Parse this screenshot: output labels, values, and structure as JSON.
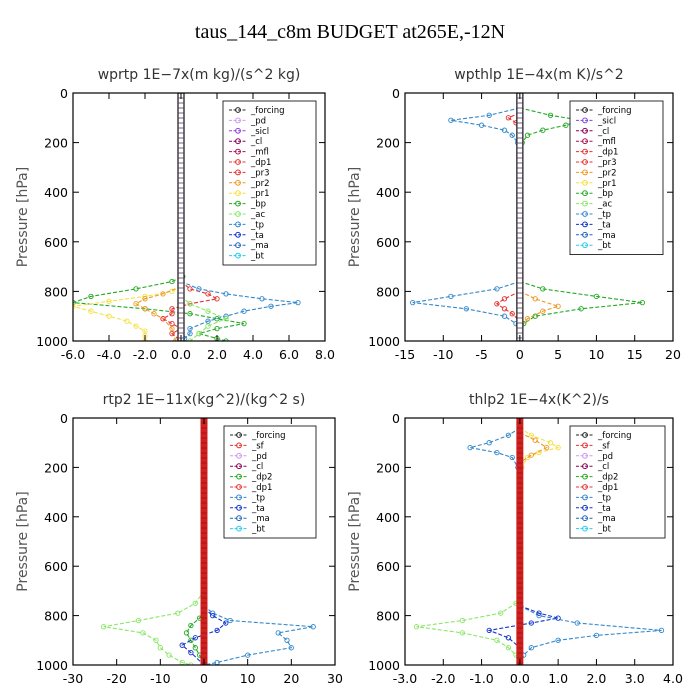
{
  "figure_title": "taus_144_c8m  BUDGET at265E,-12N",
  "colors": {
    "forcing": "#222222",
    "pd": "#cc99ee",
    "sicl": "#8844dd",
    "cl": "#880055",
    "mfl": "#aa1155",
    "dp1": "#e83030",
    "pr3": "#e83030",
    "pr2": "#ee9922",
    "pr1": "#f5e040",
    "bp": "#22aa22",
    "ac": "#88e866",
    "tp": "#3388cc",
    "ta": "#1133cc",
    "ma": "#2266bb",
    "bt": "#22ccee",
    "sf": "#e83030",
    "dp2": "#22aa22",
    "thick_red": "#d02020"
  },
  "chart_data": [
    {
      "type": "line",
      "title": "wprtp   1E−7x(m kg)/(s^2 kg)",
      "ylabel": "Pressure [hPa]",
      "xlim": [
        -6,
        8
      ],
      "ylim": [
        1000,
        0
      ],
      "xticks": [
        -6,
        -4,
        -2,
        0,
        2,
        4,
        6,
        8
      ],
      "xtick_labels": [
        "-6.0",
        "-4.0",
        "-2.0",
        "0.0",
        "2.0",
        "4.0",
        "6.0",
        "8.0"
      ],
      "yticks": [
        0,
        200,
        400,
        600,
        800,
        1000
      ],
      "ytick_labels": [
        "0",
        "200",
        "400",
        "600",
        "800",
        "1000"
      ],
      "legend": [
        "_forcing",
        "_pd",
        "_sicl",
        "_cl",
        "_mfl",
        "_dp1",
        "_pr3",
        "_pr2",
        "_pr1",
        "_bp",
        "_ac",
        "_tp",
        "_ta",
        "_ma",
        "_bt"
      ],
      "series": [
        {
          "name": "_bp",
          "color_key": "bp",
          "y": [
            700,
            740,
            760,
            790,
            820,
            845,
            870,
            890,
            910,
            930,
            950,
            970,
            990,
            1000
          ],
          "x": [
            0,
            0.1,
            -0.5,
            -2.5,
            -5,
            -6,
            -2,
            0.5,
            2,
            3.5,
            2,
            1,
            2,
            2.5
          ]
        },
        {
          "name": "_pr1",
          "color_key": "pr1",
          "y": [
            780,
            800,
            820,
            840,
            860,
            880,
            900,
            920,
            940,
            960,
            980,
            1000
          ],
          "x": [
            0,
            -0.5,
            -2,
            -4,
            -6,
            -5,
            -4,
            -3,
            -2.5,
            -2,
            -2,
            -2
          ]
        },
        {
          "name": "_pr2",
          "color_key": "pr2",
          "y": [
            780,
            810,
            830,
            850,
            870,
            890,
            910,
            950,
            1000
          ],
          "x": [
            0,
            -1,
            -2,
            -2.5,
            -2,
            -1.5,
            -1,
            -0.5,
            -0.3
          ]
        },
        {
          "name": "_dp1",
          "color_key": "dp1",
          "y": [
            760,
            790,
            810,
            830,
            850,
            870,
            890,
            910,
            930,
            950,
            970,
            1000
          ],
          "x": [
            0,
            0.5,
            1.5,
            2,
            0.5,
            -0.5,
            -0.5,
            -1,
            -0.5,
            0,
            -0.5,
            0
          ]
        },
        {
          "name": "_tp",
          "color_key": "tp",
          "y": [
            760,
            790,
            810,
            830,
            845,
            860,
            880,
            900,
            920,
            950,
            970,
            990,
            1000
          ],
          "x": [
            0,
            1,
            2.5,
            4.5,
            6.5,
            5,
            3.5,
            2.5,
            1.5,
            0.5,
            0.5,
            0.2,
            0
          ]
        },
        {
          "name": "_ac",
          "color_key": "ac",
          "y": [
            820,
            850,
            880,
            910,
            940,
            970,
            1000
          ],
          "x": [
            0,
            0.5,
            1.5,
            2.5,
            1.5,
            1,
            0.5
          ]
        }
      ]
    },
    {
      "type": "line",
      "title": "wpthlp   1E−4x(m K)/s^2",
      "ylabel": "Pressure [hPa]",
      "xlim": [
        -15,
        20
      ],
      "ylim": [
        1000,
        0
      ],
      "xticks": [
        -15,
        -10,
        -5,
        0,
        5,
        10,
        15,
        20
      ],
      "xtick_labels": [
        "-15",
        "-10",
        "-5",
        "0",
        "5",
        "10",
        "15",
        "20"
      ],
      "yticks": [
        0,
        200,
        400,
        600,
        800,
        1000
      ],
      "ytick_labels": [
        "0",
        "200",
        "400",
        "600",
        "800",
        "1000"
      ],
      "legend": [
        "_forcing",
        "_sicl",
        "_cl",
        "_mfl",
        "_dp1",
        "_pr3",
        "_pr2",
        "_pr1",
        "_bp",
        "_ac",
        "_tp",
        "_ta",
        "_ma",
        "_bt"
      ],
      "series": [
        {
          "name": "_bp",
          "color_key": "bp",
          "y": [
            60,
            90,
            110,
            130,
            150,
            170,
            200,
            240
          ],
          "x": [
            0,
            4,
            8,
            6,
            3,
            1,
            0.3,
            0
          ]
        },
        {
          "name": "_tp",
          "color_key": "tp",
          "y": [
            60,
            90,
            110,
            130,
            150,
            170,
            200,
            240
          ],
          "x": [
            0,
            -4,
            -9,
            -5,
            -2,
            -1,
            -0.3,
            0
          ]
        },
        {
          "name": "_dp1",
          "color_key": "dp1",
          "y": [
            80,
            100,
            120,
            140
          ],
          "x": [
            0,
            -1.5,
            -0.5,
            0
          ]
        },
        {
          "name": "_bp_low",
          "color_key": "bp",
          "y": [
            760,
            790,
            820,
            845,
            870,
            900,
            930,
            960,
            1000
          ],
          "x": [
            0,
            3,
            10,
            16,
            8,
            2,
            0.5,
            0,
            0
          ]
        },
        {
          "name": "_tp_low",
          "color_key": "tp",
          "y": [
            760,
            790,
            820,
            845,
            870,
            900,
            930,
            960,
            1000
          ],
          "x": [
            0,
            -3,
            -9,
            -14,
            -7,
            -2,
            -0.5,
            0,
            0
          ]
        },
        {
          "name": "_pr2",
          "color_key": "pr2",
          "y": [
            800,
            830,
            860,
            880,
            910,
            950,
            1000
          ],
          "x": [
            0,
            2,
            5,
            3,
            1,
            0,
            0
          ]
        },
        {
          "name": "_dp1_low",
          "color_key": "dp1",
          "y": [
            800,
            830,
            850,
            870,
            890,
            920,
            1000
          ],
          "x": [
            0,
            -2,
            -3,
            -2,
            -1,
            0,
            0
          ]
        }
      ]
    },
    {
      "type": "line",
      "title": "rtp2   1E−11x(kg^2)/(kg^2 s)",
      "ylabel": "Pressure [hPa]",
      "xlim": [
        -30,
        30
      ],
      "ylim": [
        1000,
        0
      ],
      "xticks": [
        -30,
        -20,
        -10,
        0,
        10,
        20,
        30
      ],
      "xtick_labels": [
        "-30",
        "-20",
        "-10",
        "0",
        "10",
        "20",
        "30"
      ],
      "yticks": [
        0,
        200,
        400,
        600,
        800,
        1000
      ],
      "ytick_labels": [
        "0",
        "200",
        "400",
        "600",
        "800",
        "1000"
      ],
      "legend": [
        "_forcing",
        "_sf",
        "_pd",
        "_cl",
        "_dp2",
        "_dp1",
        "_tp",
        "_ta",
        "_ma",
        "_bt"
      ],
      "series": [
        {
          "name": "_dp1",
          "color_key": "ac",
          "y": [
            700,
            750,
            790,
            820,
            845,
            870,
            900,
            930,
            960,
            990,
            1000
          ],
          "x": [
            0,
            -2,
            -6,
            -15,
            -23,
            -14,
            -11,
            -10,
            -8,
            -5,
            -3
          ]
        },
        {
          "name": "_dp2",
          "color_key": "dp2",
          "y": [
            780,
            810,
            840,
            870,
            900,
            930,
            960,
            1000
          ],
          "x": [
            0,
            -1,
            -3,
            -4,
            -3,
            -2,
            -1,
            0
          ]
        },
        {
          "name": "_tp",
          "color_key": "tp",
          "y": [
            760,
            790,
            820,
            845,
            870,
            900,
            930,
            960,
            990,
            1000
          ],
          "x": [
            0,
            2,
            6,
            25,
            17,
            19,
            20,
            10,
            3,
            0
          ]
        },
        {
          "name": "_ta",
          "color_key": "ta",
          "y": [
            770,
            800,
            830,
            860,
            890,
            920,
            950,
            1000
          ],
          "x": [
            0,
            2,
            5,
            3,
            -2,
            -5,
            -3,
            0
          ]
        }
      ]
    },
    {
      "type": "line",
      "title": "thlp2   1E−4x(K^2)/s",
      "ylabel": "Pressure [hPa]",
      "xlim": [
        -3,
        4
      ],
      "ylim": [
        1000,
        0
      ],
      "xticks": [
        -3,
        -2,
        -1,
        0,
        1,
        2,
        3,
        4
      ],
      "xtick_labels": [
        "-3.0",
        "-2.0",
        "-1.0",
        "0.0",
        "1.0",
        "2.0",
        "3.0",
        "4.0"
      ],
      "yticks": [
        0,
        200,
        400,
        600,
        800,
        1000
      ],
      "ytick_labels": [
        "0",
        "200",
        "400",
        "600",
        "800",
        "1000"
      ],
      "legend": [
        "_forcing",
        "_sf",
        "_pd",
        "_cl",
        "_dp2",
        "_dp1",
        "_tp",
        "_ta",
        "_ma",
        "_bt"
      ],
      "series": [
        {
          "name": "_tp_up",
          "color_key": "tp",
          "y": [
            40,
            70,
            100,
            120,
            140,
            160,
            200,
            250
          ],
          "x": [
            0,
            -0.3,
            -0.8,
            -1.3,
            -0.6,
            -0.2,
            -0.05,
            0
          ]
        },
        {
          "name": "_pd",
          "color_key": "pr1",
          "y": [
            40,
            70,
            100,
            120,
            140,
            160,
            200,
            250
          ],
          "x": [
            0,
            0.3,
            0.8,
            1.0,
            0.5,
            0.2,
            0.05,
            0
          ]
        },
        {
          "name": "_cl",
          "color_key": "pr2",
          "y": [
            60,
            90,
            120,
            150,
            180
          ],
          "x": [
            0,
            0.4,
            0.7,
            0.3,
            0
          ]
        },
        {
          "name": "_dp1",
          "color_key": "ac",
          "y": [
            700,
            750,
            790,
            820,
            845,
            870,
            900,
            930,
            960,
            1000
          ],
          "x": [
            0,
            -0.1,
            -0.5,
            -1.5,
            -2.7,
            -1.5,
            -0.6,
            -0.3,
            -0.1,
            0
          ]
        },
        {
          "name": "_tp",
          "color_key": "tp",
          "y": [
            760,
            800,
            830,
            860,
            880,
            900,
            930,
            960,
            1000
          ],
          "x": [
            0,
            0.5,
            1.5,
            3.7,
            2,
            1,
            0.3,
            0.1,
            0
          ]
        },
        {
          "name": "_ta",
          "color_key": "ta",
          "y": [
            760,
            790,
            810,
            830,
            860,
            890,
            930,
            1000
          ],
          "x": [
            0,
            0.5,
            1,
            0.3,
            -0.8,
            -0.3,
            0,
            0
          ]
        }
      ]
    }
  ]
}
